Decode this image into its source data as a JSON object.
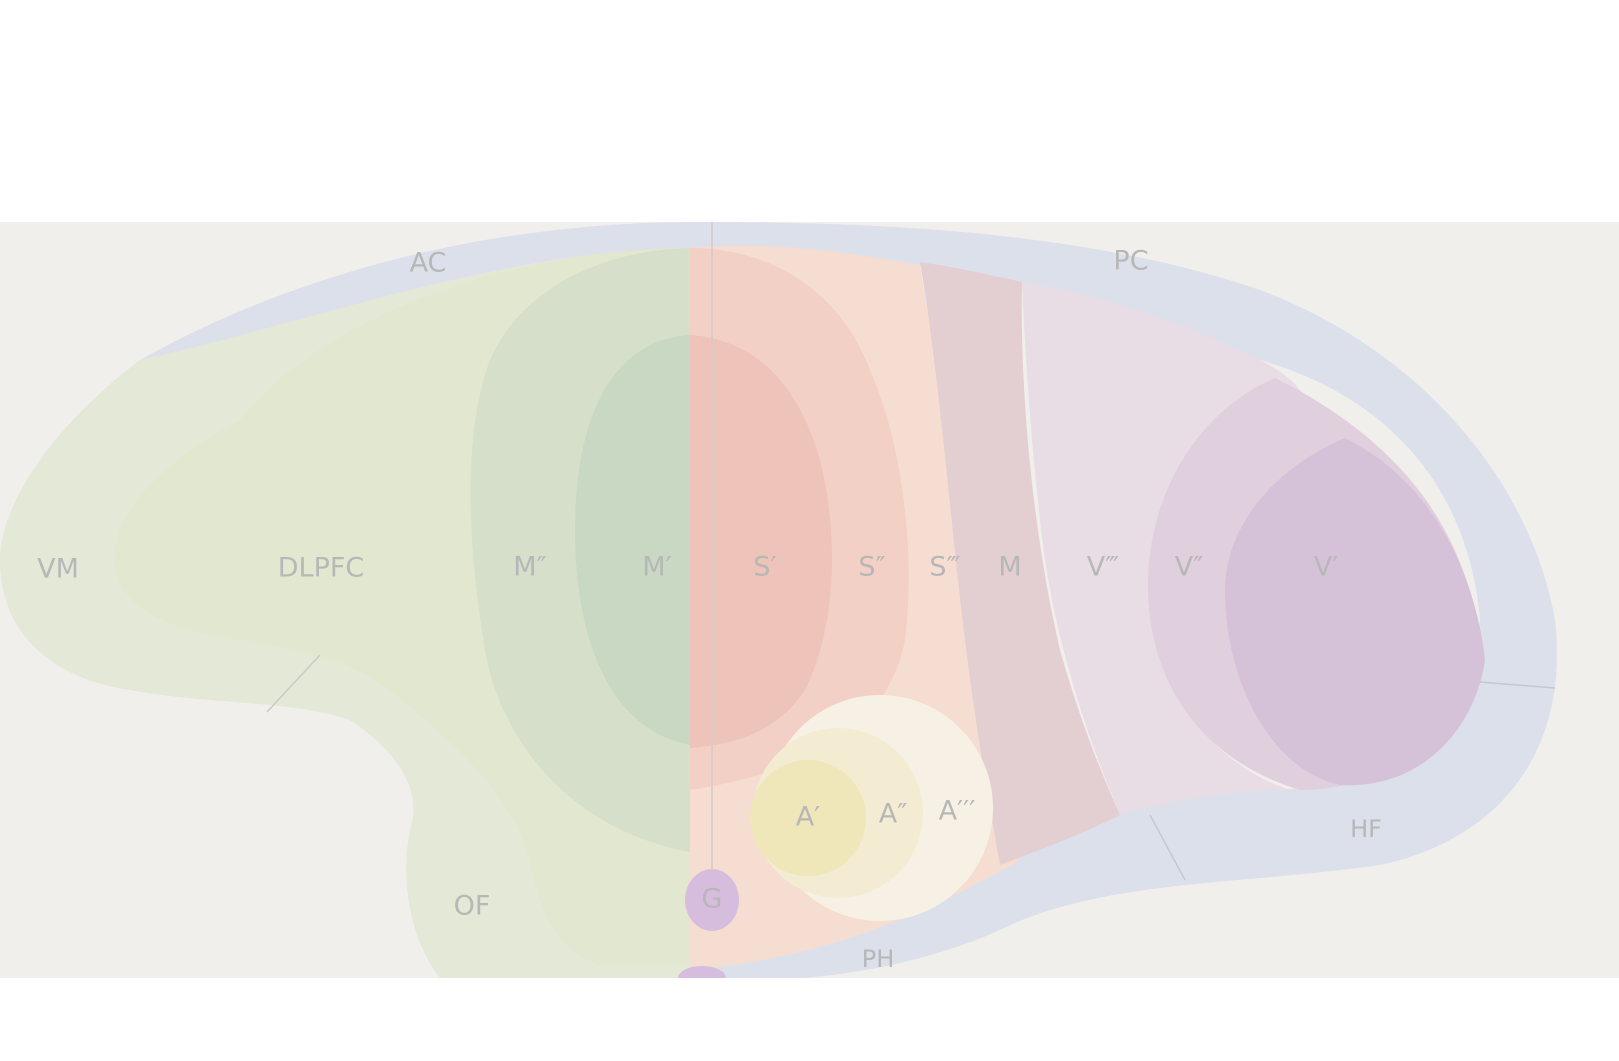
{
  "labels": {
    "ac": "AC",
    "pc": "PC",
    "vm": "VM",
    "dlpfc": "DLPFC",
    "m2": "M″",
    "m1": "M′",
    "s1": "S′",
    "s2": "S″",
    "s3": "S‴",
    "m": "M",
    "v3": "V‴",
    "v2": "V″",
    "v1": "V′",
    "a1": "A′",
    "a2": "A″",
    "a3": "A′′′",
    "hf": "HF",
    "of": "OF",
    "g": "G",
    "ph": "PH"
  },
  "colors": {
    "background": "#f1efeb",
    "outer_band": "#dbe0ea",
    "frontal_pale": "#e4e8d6",
    "frontal": "#e2e7cf",
    "motor_outer": "#d6dfca",
    "motor_inner": "#c9d8c3",
    "somato_outer": "#f5ddd2",
    "somato_mid": "#f2d0c6",
    "somato_inner": "#eec3b9",
    "parietal": "#e3cfd1",
    "visual_outer": "#e8dde5",
    "visual_mid": "#e0cfdd",
    "visual_inner": "#d6c2d8",
    "auditory_outer": "#f6f1e4",
    "auditory_mid": "#f3ecd2",
    "auditory_inner": "#efe6b9",
    "gustatory": "#d7bddd",
    "label": "#b7b7b7"
  }
}
